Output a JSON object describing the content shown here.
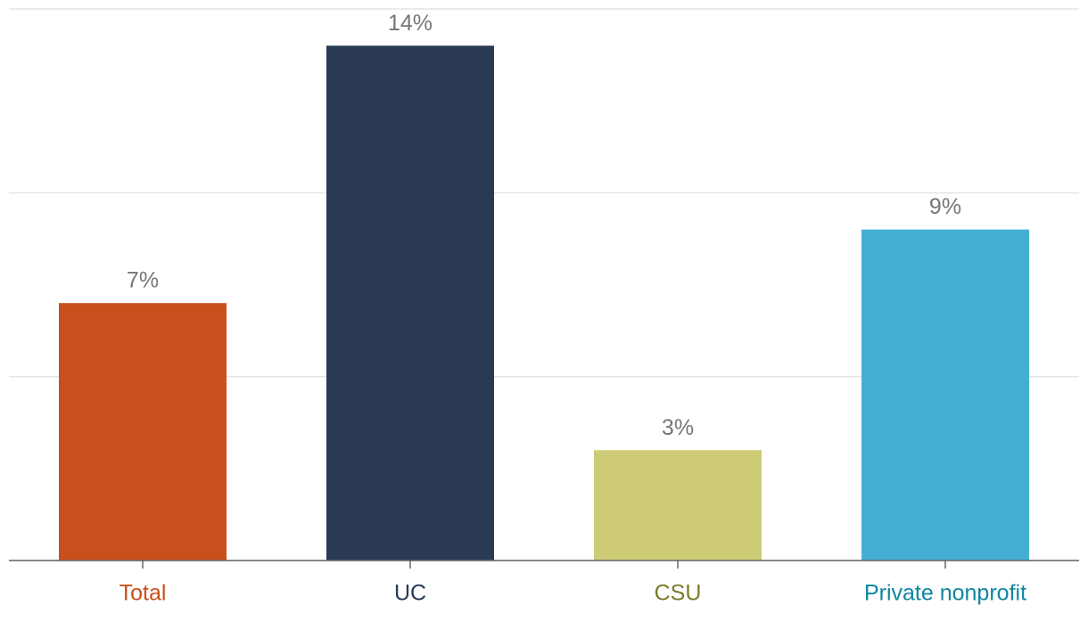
{
  "chart_data": {
    "type": "bar",
    "categories": [
      "Total",
      "UC",
      "CSU",
      "Private nonprofit"
    ],
    "values": [
      7,
      14,
      3,
      9
    ],
    "value_labels": [
      "7%",
      "14%",
      "3%",
      "9%"
    ],
    "colors": [
      "#c9501c",
      "#2a3a54",
      "#cdcb75",
      "#45afd3"
    ],
    "label_colors": [
      "#c9501c",
      "#2a3a54",
      "#7f7a2a",
      "#0f86a0"
    ],
    "ylim": [
      0,
      15
    ],
    "yticks": [
      0,
      5,
      10,
      15
    ],
    "grid": true
  }
}
